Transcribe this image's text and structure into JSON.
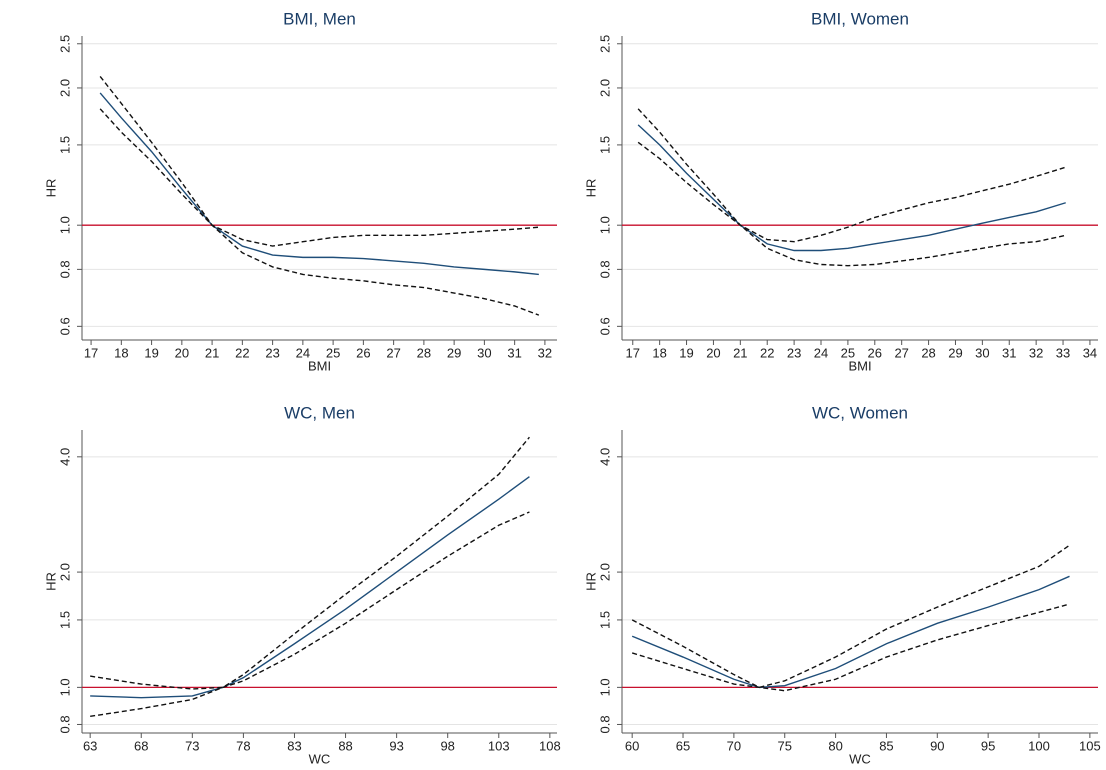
{
  "chart_data": [
    {
      "type": "line",
      "title": "BMI, Men",
      "x_label": "BMI",
      "y_label": "HR",
      "log_y": true,
      "grid": true,
      "hline": 1,
      "hline_color": "#c8102e",
      "xlim": [
        16.7,
        32.4
      ],
      "xticks": [
        17,
        18,
        19,
        20,
        21,
        22,
        23,
        24,
        25,
        26,
        27,
        28,
        29,
        30,
        31,
        32
      ],
      "ylim": [
        0.56,
        2.6
      ],
      "yticks": [
        0.6,
        0.8,
        {
          "value": 1,
          "label": "1.0"
        },
        1.5,
        {
          "value": 2,
          "label": "2.0"
        },
        2.5
      ],
      "x": [
        17.3,
        18,
        19,
        20,
        21,
        22,
        23,
        24,
        25,
        26,
        27,
        28,
        29,
        30,
        31,
        31.8
      ],
      "series": [
        {
          "color": "#1f4e79",
          "dashed": false,
          "values": [
            1.95,
            1.72,
            1.45,
            1.2,
            1.0,
            0.9,
            0.86,
            0.85,
            0.85,
            0.845,
            0.835,
            0.825,
            0.81,
            0.8,
            0.79,
            0.78
          ]
        },
        {
          "color": "#111111",
          "dashed": true,
          "values": [
            2.12,
            1.85,
            1.52,
            1.24,
            1.0,
            0.93,
            0.9,
            0.92,
            0.94,
            0.95,
            0.95,
            0.95,
            0.96,
            0.97,
            0.98,
            0.99
          ]
        },
        {
          "color": "#111111",
          "dashed": true,
          "values": [
            1.8,
            1.6,
            1.38,
            1.17,
            1.0,
            0.87,
            0.81,
            0.78,
            0.765,
            0.755,
            0.74,
            0.73,
            0.71,
            0.69,
            0.665,
            0.635
          ]
        }
      ]
    },
    {
      "type": "line",
      "title": "BMI, Women",
      "x_label": "BMI",
      "y_label": "HR",
      "log_y": true,
      "grid": true,
      "hline": 1,
      "hline_color": "#c8102e",
      "xlim": [
        16.6,
        34.3
      ],
      "xticks": [
        17,
        18,
        19,
        20,
        21,
        22,
        23,
        24,
        25,
        26,
        27,
        28,
        29,
        30,
        31,
        32,
        33,
        34
      ],
      "ylim": [
        0.56,
        2.6
      ],
      "yticks": [
        0.6,
        0.8,
        {
          "value": 1,
          "label": "1.0"
        },
        1.5,
        {
          "value": 2,
          "label": "2.0"
        },
        2.5
      ],
      "x": [
        17.2,
        18,
        19,
        20,
        21,
        22,
        23,
        24,
        25,
        26,
        27,
        28,
        29,
        30,
        31,
        32,
        33.1
      ],
      "series": [
        {
          "color": "#1f4e79",
          "dashed": false,
          "values": [
            1.66,
            1.5,
            1.3,
            1.14,
            1.0,
            0.91,
            0.88,
            0.88,
            0.89,
            0.91,
            0.93,
            0.95,
            0.98,
            1.01,
            1.04,
            1.07,
            1.12
          ]
        },
        {
          "color": "#111111",
          "dashed": true,
          "values": [
            1.8,
            1.6,
            1.36,
            1.17,
            1.0,
            0.93,
            0.92,
            0.95,
            0.99,
            1.04,
            1.08,
            1.12,
            1.15,
            1.19,
            1.23,
            1.28,
            1.34
          ]
        },
        {
          "color": "#111111",
          "dashed": true,
          "values": [
            1.52,
            1.4,
            1.24,
            1.11,
            1.0,
            0.89,
            0.84,
            0.82,
            0.815,
            0.82,
            0.835,
            0.85,
            0.87,
            0.89,
            0.91,
            0.92,
            0.95
          ]
        }
      ]
    },
    {
      "type": "line",
      "title": "WC, Men",
      "x_label": "WC",
      "y_label": "HR",
      "log_y": true,
      "grid": true,
      "hline": 1,
      "hline_color": "#c8102e",
      "xlim": [
        62.2,
        108.7
      ],
      "xticks": [
        63,
        68,
        73,
        78,
        83,
        88,
        93,
        98,
        103,
        108
      ],
      "ylim": [
        0.76,
        4.7
      ],
      "yticks": [
        0.8,
        {
          "value": 1,
          "label": "1.0"
        },
        1.5,
        {
          "value": 2,
          "label": "2.0"
        },
        {
          "value": 4,
          "label": "4.0"
        }
      ],
      "x": [
        63,
        68,
        73,
        76,
        78,
        83,
        88,
        93,
        98,
        103,
        106
      ],
      "series": [
        {
          "color": "#1f4e79",
          "dashed": false,
          "values": [
            0.95,
            0.94,
            0.95,
            1.0,
            1.06,
            1.3,
            1.6,
            2.0,
            2.5,
            3.1,
            3.55
          ]
        },
        {
          "color": "#111111",
          "dashed": true,
          "values": [
            1.07,
            1.02,
            0.99,
            1.0,
            1.08,
            1.38,
            1.75,
            2.2,
            2.8,
            3.6,
            4.5
          ]
        },
        {
          "color": "#111111",
          "dashed": true,
          "values": [
            0.84,
            0.88,
            0.93,
            1.0,
            1.04,
            1.22,
            1.47,
            1.8,
            2.2,
            2.65,
            2.87
          ]
        }
      ]
    },
    {
      "type": "line",
      "title": "WC, Women",
      "x_label": "WC",
      "y_label": "HR",
      "log_y": true,
      "grid": true,
      "hline": 1,
      "hline_color": "#c8102e",
      "xlim": [
        59,
        105.8
      ],
      "xticks": [
        60,
        65,
        70,
        75,
        80,
        85,
        90,
        95,
        100,
        105
      ],
      "ylim": [
        0.76,
        4.7
      ],
      "yticks": [
        0.8,
        {
          "value": 1,
          "label": "1.0"
        },
        1.5,
        {
          "value": 2,
          "label": "2.0"
        },
        {
          "value": 4,
          "label": "4.0"
        }
      ],
      "x": [
        60,
        65,
        70,
        72.5,
        75,
        80,
        85,
        90,
        95,
        100,
        103
      ],
      "series": [
        {
          "color": "#1f4e79",
          "dashed": false,
          "values": [
            1.36,
            1.2,
            1.05,
            1.0,
            1.01,
            1.12,
            1.3,
            1.47,
            1.62,
            1.8,
            1.95
          ]
        },
        {
          "color": "#111111",
          "dashed": true,
          "values": [
            1.5,
            1.28,
            1.08,
            1.0,
            1.04,
            1.2,
            1.42,
            1.62,
            1.83,
            2.07,
            2.35
          ]
        },
        {
          "color": "#111111",
          "dashed": true,
          "values": [
            1.23,
            1.12,
            1.02,
            1.0,
            0.98,
            1.05,
            1.2,
            1.33,
            1.45,
            1.57,
            1.65
          ]
        }
      ]
    }
  ]
}
